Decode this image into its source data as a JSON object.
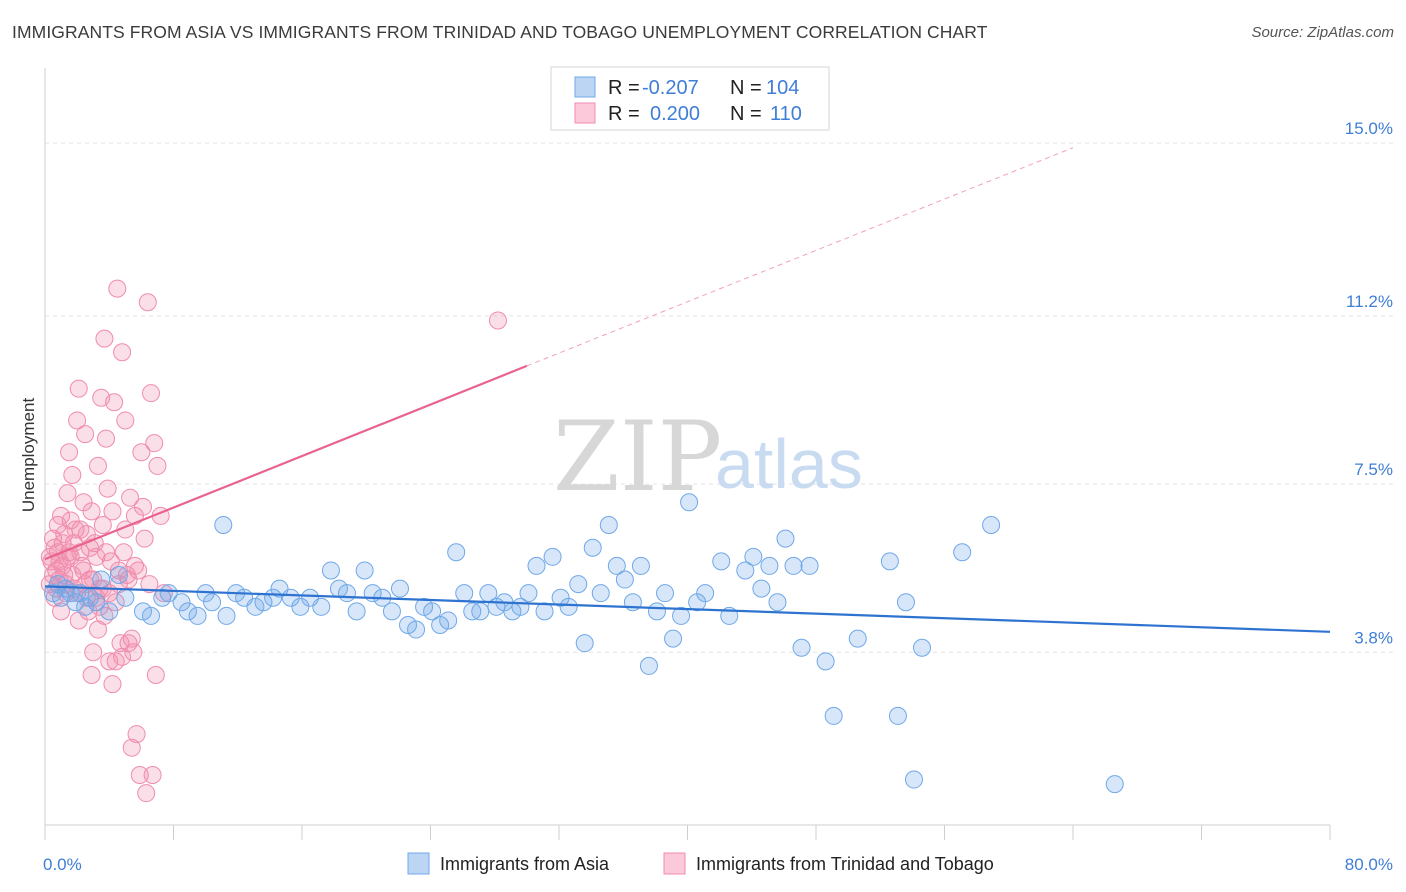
{
  "title": "IMMIGRANTS FROM ASIA VS IMMIGRANTS FROM TRINIDAD AND TOBAGO UNEMPLOYMENT CORRELATION CHART",
  "source": "Source: ZipAtlas.com",
  "watermark": {
    "zip": "ZIP",
    "atlas": "atlas"
  },
  "colors": {
    "asia": "#6fa8e8",
    "asia_line": "#2f73d0",
    "tt": "#f08cad",
    "tt_line": "#e8648f",
    "tick": "#3f7ed6"
  },
  "legend": {
    "rows": [
      {
        "r_label": "R =",
        "r_value": "-0.207",
        "n_label": "N =",
        "n_value": "104"
      },
      {
        "r_label": "R =",
        "r_value": "0.200",
        "n_label": "N =",
        "n_value": "110"
      }
    ]
  },
  "bottom_legend": [
    "Immigrants from Asia",
    "Immigrants from Trinidad and Tobago"
  ],
  "chart_data": {
    "type": "scatter",
    "title": "IMMIGRANTS FROM ASIA VS IMMIGRANTS FROM TRINIDAD AND TOBAGO UNEMPLOYMENT CORRELATION CHART",
    "xlabel": "",
    "ylabel": "Unemployment",
    "xlim": [
      0,
      80
    ],
    "ylim": [
      0,
      16.5
    ],
    "x_tick_labels": [
      "0.0%",
      "80.0%"
    ],
    "y_ticks": [
      3.8,
      7.5,
      11.2,
      15.0
    ],
    "y_tick_labels": [
      "3.8%",
      "7.5%",
      "11.2%",
      "15.0%"
    ],
    "grid": true,
    "legend_position": "top-center",
    "series": [
      {
        "name": "Immigrants from Asia",
        "trend": {
          "x": [
            0,
            80
          ],
          "y": [
            5.25,
            4.25
          ]
        },
        "points": [
          [
            0.5,
            5.1
          ],
          [
            0.8,
            5.3
          ],
          [
            1.0,
            5.0
          ],
          [
            1.3,
            5.2
          ],
          [
            1.6,
            5.1
          ],
          [
            1.9,
            4.9
          ],
          [
            2.2,
            5.1
          ],
          [
            2.5,
            4.8
          ],
          [
            2.8,
            5.0
          ],
          [
            3.2,
            4.9
          ],
          [
            3.5,
            5.4
          ],
          [
            4.0,
            4.7
          ],
          [
            4.6,
            5.5
          ],
          [
            5.0,
            5.0
          ],
          [
            6.1,
            4.7
          ],
          [
            6.6,
            4.6
          ],
          [
            7.3,
            5.0
          ],
          [
            7.7,
            5.1
          ],
          [
            8.5,
            4.9
          ],
          [
            8.9,
            4.7
          ],
          [
            9.5,
            4.6
          ],
          [
            10.0,
            5.1
          ],
          [
            10.4,
            4.9
          ],
          [
            11.3,
            4.6
          ],
          [
            11.9,
            5.1
          ],
          [
            12.4,
            5.0
          ],
          [
            13.1,
            4.8
          ],
          [
            13.6,
            4.9
          ],
          [
            14.2,
            5.0
          ],
          [
            14.6,
            5.2
          ],
          [
            15.3,
            5.0
          ],
          [
            15.9,
            4.8
          ],
          [
            16.5,
            5.0
          ],
          [
            17.2,
            4.8
          ],
          [
            17.8,
            5.6
          ],
          [
            18.3,
            5.2
          ],
          [
            18.8,
            5.1
          ],
          [
            19.4,
            4.7
          ],
          [
            19.9,
            5.6
          ],
          [
            20.4,
            5.1
          ],
          [
            21.0,
            5.0
          ],
          [
            21.6,
            4.7
          ],
          [
            22.1,
            5.2
          ],
          [
            22.6,
            4.4
          ],
          [
            23.1,
            4.3
          ],
          [
            23.6,
            4.8
          ],
          [
            24.1,
            4.7
          ],
          [
            24.6,
            4.4
          ],
          [
            25.1,
            4.5
          ],
          [
            25.6,
            6.0
          ],
          [
            26.1,
            5.1
          ],
          [
            26.6,
            4.7
          ],
          [
            27.1,
            4.7
          ],
          [
            27.6,
            5.1
          ],
          [
            28.1,
            4.8
          ],
          [
            28.6,
            4.9
          ],
          [
            29.1,
            4.7
          ],
          [
            29.6,
            4.8
          ],
          [
            30.1,
            5.1
          ],
          [
            30.6,
            5.7
          ],
          [
            31.1,
            4.7
          ],
          [
            31.6,
            5.9
          ],
          [
            32.1,
            5.0
          ],
          [
            32.6,
            4.8
          ],
          [
            33.2,
            5.3
          ],
          [
            33.6,
            4.0
          ],
          [
            34.1,
            6.1
          ],
          [
            34.6,
            5.1
          ],
          [
            35.1,
            6.6
          ],
          [
            35.6,
            5.7
          ],
          [
            36.1,
            5.4
          ],
          [
            36.6,
            4.9
          ],
          [
            37.1,
            5.7
          ],
          [
            37.6,
            3.5
          ],
          [
            38.1,
            4.7
          ],
          [
            38.6,
            5.1
          ],
          [
            39.1,
            4.1
          ],
          [
            39.6,
            4.6
          ],
          [
            40.1,
            7.1
          ],
          [
            40.6,
            4.9
          ],
          [
            41.1,
            5.1
          ],
          [
            42.1,
            5.8
          ],
          [
            42.6,
            4.6
          ],
          [
            43.6,
            5.6
          ],
          [
            44.1,
            5.9
          ],
          [
            44.6,
            5.2
          ],
          [
            45.1,
            5.7
          ],
          [
            45.6,
            4.9
          ],
          [
            46.1,
            6.3
          ],
          [
            46.6,
            5.7
          ],
          [
            47.1,
            3.9
          ],
          [
            47.6,
            5.7
          ],
          [
            48.6,
            3.6
          ],
          [
            49.1,
            2.4
          ],
          [
            50.6,
            4.1
          ],
          [
            52.6,
            5.8
          ],
          [
            53.1,
            2.4
          ],
          [
            53.6,
            4.9
          ],
          [
            54.1,
            1.0
          ],
          [
            54.6,
            3.9
          ],
          [
            57.1,
            6.0
          ],
          [
            58.9,
            6.6
          ],
          [
            66.6,
            0.9
          ],
          [
            11.1,
            6.6
          ]
        ]
      },
      {
        "name": "Immigrants from Trinidad and Tobago",
        "trend": {
          "x": [
            0,
            30
          ],
          "y": [
            5.85,
            10.1
          ]
        },
        "trend_dashed": {
          "x": [
            30,
            64
          ],
          "y": [
            10.1,
            14.9
          ]
        },
        "points": [
          [
            0.3,
            5.3
          ],
          [
            0.4,
            5.8
          ],
          [
            0.5,
            6.3
          ],
          [
            0.6,
            5.0
          ],
          [
            0.7,
            5.6
          ],
          [
            0.8,
            6.0
          ],
          [
            0.9,
            5.4
          ],
          [
            1.0,
            6.8
          ],
          [
            1.1,
            6.2
          ],
          [
            1.2,
            5.5
          ],
          [
            1.3,
            5.1
          ],
          [
            1.4,
            7.3
          ],
          [
            1.5,
            8.2
          ],
          [
            1.6,
            5.9
          ],
          [
            1.7,
            7.7
          ],
          [
            1.8,
            5.2
          ],
          [
            1.9,
            6.5
          ],
          [
            2.0,
            8.9
          ],
          [
            2.1,
            9.6
          ],
          [
            2.2,
            6.0
          ],
          [
            2.3,
            5.7
          ],
          [
            2.4,
            7.1
          ],
          [
            2.5,
            8.6
          ],
          [
            2.6,
            6.4
          ],
          [
            2.7,
            4.7
          ],
          [
            2.8,
            5.4
          ],
          [
            2.9,
            3.3
          ],
          [
            3.0,
            3.8
          ],
          [
            3.1,
            6.2
          ],
          [
            3.2,
            5.0
          ],
          [
            3.3,
            7.9
          ],
          [
            3.4,
            5.2
          ],
          [
            3.5,
            9.4
          ],
          [
            3.6,
            6.6
          ],
          [
            3.7,
            10.7
          ],
          [
            3.8,
            8.5
          ],
          [
            3.9,
            7.4
          ],
          [
            4.0,
            3.6
          ],
          [
            4.1,
            5.8
          ],
          [
            4.2,
            6.9
          ],
          [
            4.3,
            9.3
          ],
          [
            4.4,
            4.9
          ],
          [
            4.5,
            11.8
          ],
          [
            4.6,
            5.3
          ],
          [
            4.7,
            4.0
          ],
          [
            4.8,
            10.4
          ],
          [
            4.9,
            6.0
          ],
          [
            5.0,
            8.9
          ],
          [
            5.1,
            5.5
          ],
          [
            5.2,
            4.0
          ],
          [
            5.3,
            7.2
          ],
          [
            5.4,
            1.7
          ],
          [
            5.5,
            3.8
          ],
          [
            5.6,
            6.8
          ],
          [
            5.7,
            2.0
          ],
          [
            5.8,
            5.6
          ],
          [
            5.9,
            1.1
          ],
          [
            6.0,
            8.2
          ],
          [
            6.1,
            7.0
          ],
          [
            6.2,
            6.3
          ],
          [
            6.3,
            0.7
          ],
          [
            6.4,
            11.5
          ],
          [
            6.5,
            5.3
          ],
          [
            6.6,
            9.5
          ],
          [
            6.7,
            1.1
          ],
          [
            6.8,
            8.4
          ],
          [
            6.9,
            3.3
          ],
          [
            7.0,
            7.9
          ],
          [
            7.2,
            6.8
          ],
          [
            7.4,
            5.1
          ],
          [
            0.3,
            5.9
          ],
          [
            0.5,
            5.5
          ],
          [
            0.6,
            6.1
          ],
          [
            0.7,
            5.2
          ],
          [
            0.9,
            5.8
          ],
          [
            1.1,
            5.7
          ],
          [
            1.2,
            6.4
          ],
          [
            1.3,
            5.3
          ],
          [
            1.5,
            6.0
          ],
          [
            1.7,
            5.5
          ],
          [
            1.8,
            6.2
          ],
          [
            2.0,
            5.1
          ],
          [
            2.2,
            6.5
          ],
          [
            2.4,
            5.6
          ],
          [
            2.6,
            5.0
          ],
          [
            2.8,
            6.1
          ],
          [
            3.0,
            5.4
          ],
          [
            3.2,
            5.9
          ],
          [
            3.4,
            4.8
          ],
          [
            3.6,
            5.2
          ],
          [
            3.8,
            6.0
          ],
          [
            4.0,
            5.1
          ],
          [
            4.2,
            3.1
          ],
          [
            4.4,
            3.6
          ],
          [
            4.6,
            5.6
          ],
          [
            4.8,
            3.7
          ],
          [
            5.0,
            6.5
          ],
          [
            5.2,
            5.4
          ],
          [
            5.4,
            4.1
          ],
          [
            5.6,
            5.7
          ],
          [
            28.2,
            11.1
          ],
          [
            0.8,
            6.6
          ],
          [
            1.0,
            4.7
          ],
          [
            1.4,
            5.9
          ],
          [
            1.6,
            6.7
          ],
          [
            2.1,
            4.5
          ],
          [
            2.5,
            5.3
          ],
          [
            2.9,
            6.9
          ],
          [
            3.3,
            4.3
          ],
          [
            3.7,
            4.6
          ]
        ]
      }
    ]
  }
}
